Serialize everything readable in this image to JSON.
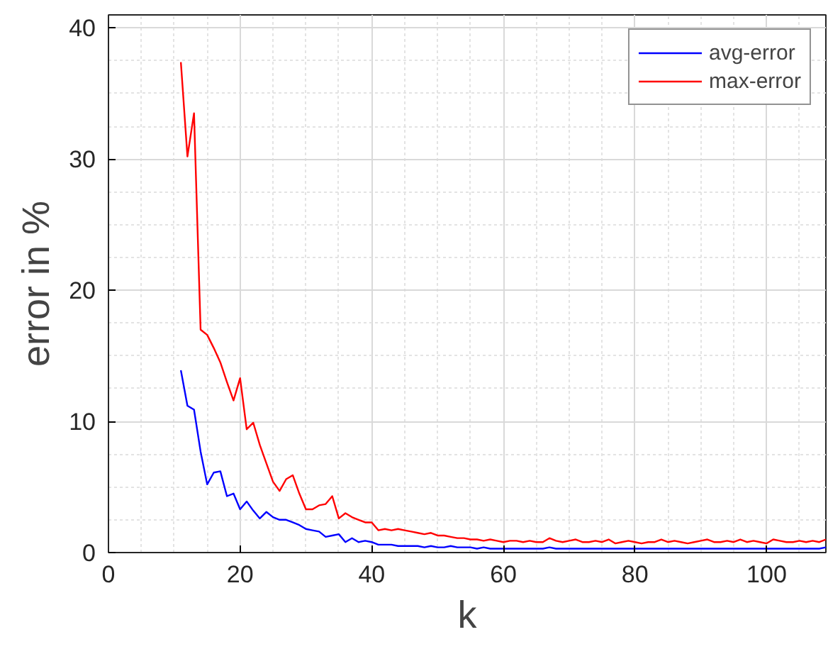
{
  "chart_data": {
    "type": "line",
    "xlabel": "k",
    "ylabel": "error in %",
    "x": [
      11,
      12,
      13,
      14,
      15,
      16,
      17,
      18,
      19,
      20,
      21,
      22,
      23,
      24,
      25,
      26,
      27,
      28,
      29,
      30,
      31,
      32,
      33,
      34,
      35,
      36,
      37,
      38,
      39,
      40,
      41,
      42,
      43,
      44,
      45,
      46,
      47,
      48,
      49,
      50,
      51,
      52,
      53,
      54,
      55,
      56,
      57,
      58,
      59,
      60,
      61,
      62,
      63,
      64,
      65,
      66,
      67,
      68,
      69,
      70,
      71,
      72,
      73,
      74,
      75,
      76,
      77,
      78,
      79,
      80,
      81,
      82,
      83,
      84,
      85,
      86,
      87,
      88,
      89,
      90,
      91,
      92,
      93,
      94,
      95,
      96,
      97,
      98,
      99,
      100,
      101,
      102,
      103,
      104,
      105,
      106,
      107,
      108,
      109
    ],
    "series": [
      {
        "name": "avg-error",
        "color": "#0000ff",
        "values": [
          13.9,
          11.2,
          10.9,
          7.7,
          5.2,
          6.1,
          6.2,
          4.3,
          4.5,
          3.3,
          3.9,
          3.2,
          2.6,
          3.1,
          2.7,
          2.5,
          2.5,
          2.3,
          2.1,
          1.8,
          1.7,
          1.6,
          1.2,
          1.3,
          1.4,
          0.8,
          1.1,
          0.8,
          0.9,
          0.8,
          0.6,
          0.6,
          0.6,
          0.5,
          0.5,
          0.5,
          0.5,
          0.4,
          0.5,
          0.4,
          0.4,
          0.5,
          0.4,
          0.4,
          0.4,
          0.3,
          0.4,
          0.3,
          0.3,
          0.3,
          0.3,
          0.3,
          0.3,
          0.3,
          0.3,
          0.3,
          0.4,
          0.3,
          0.3,
          0.3,
          0.3,
          0.3,
          0.3,
          0.3,
          0.3,
          0.3,
          0.3,
          0.3,
          0.3,
          0.3,
          0.3,
          0.3,
          0.3,
          0.3,
          0.3,
          0.3,
          0.3,
          0.3,
          0.3,
          0.3,
          0.3,
          0.3,
          0.3,
          0.3,
          0.3,
          0.3,
          0.3,
          0.3,
          0.3,
          0.3,
          0.3,
          0.3,
          0.3,
          0.3,
          0.3,
          0.3,
          0.3,
          0.3,
          0.4
        ]
      },
      {
        "name": "max-error",
        "color": "#ff0000",
        "values": [
          37.4,
          30.2,
          33.5,
          17.0,
          16.6,
          15.6,
          14.5,
          13.0,
          11.6,
          13.3,
          9.4,
          9.9,
          8.2,
          6.8,
          5.4,
          4.7,
          5.6,
          5.9,
          4.5,
          3.3,
          3.3,
          3.6,
          3.7,
          4.3,
          2.6,
          3.0,
          2.7,
          2.5,
          2.3,
          2.3,
          1.7,
          1.8,
          1.7,
          1.8,
          1.7,
          1.6,
          1.5,
          1.4,
          1.5,
          1.3,
          1.3,
          1.2,
          1.1,
          1.1,
          1.0,
          1.0,
          0.9,
          1.0,
          0.9,
          0.8,
          0.9,
          0.9,
          0.8,
          0.9,
          0.8,
          0.8,
          1.1,
          0.9,
          0.8,
          0.9,
          1.0,
          0.8,
          0.8,
          0.9,
          0.8,
          1.0,
          0.7,
          0.8,
          0.9,
          0.8,
          0.7,
          0.8,
          0.8,
          1.0,
          0.8,
          0.9,
          0.8,
          0.7,
          0.8,
          0.9,
          1.0,
          0.8,
          0.8,
          0.9,
          0.8,
          1.0,
          0.8,
          0.9,
          0.8,
          0.7,
          1.0,
          0.9,
          0.8,
          0.8,
          0.9,
          0.8,
          0.9,
          0.8,
          1.0
        ]
      }
    ],
    "xlim": [
      0,
      109
    ],
    "ylim": [
      0,
      41
    ],
    "xticks": [
      0,
      20,
      40,
      60,
      80,
      100
    ],
    "yticks": [
      0,
      10,
      20,
      30,
      40
    ],
    "grid": true,
    "legend": "top right",
    "line_style": "solid",
    "marker": "none"
  }
}
